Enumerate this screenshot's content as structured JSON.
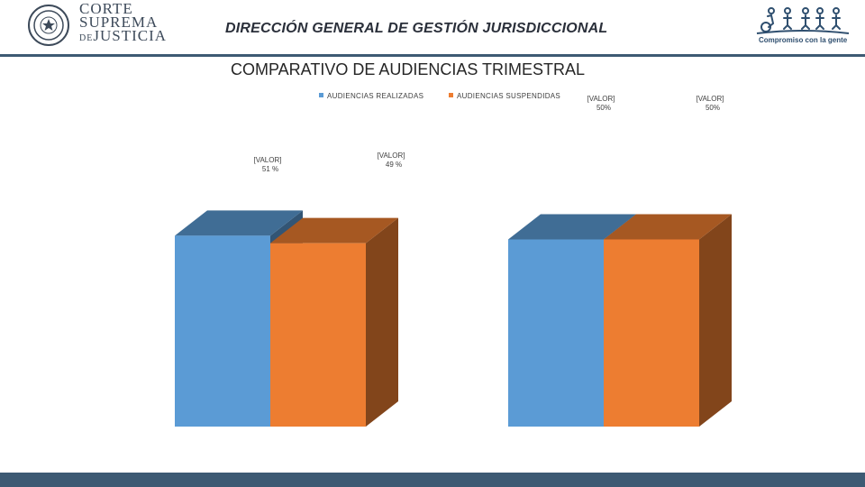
{
  "header": {
    "brand_line1": "CORTE",
    "brand_line2": "SUPREMA",
    "brand_de": "DE",
    "brand_line3": "JUSTICIA",
    "title": "DIRECCIÓN GENERAL DE GESTIÓN JURISDICCIONAL",
    "slogan": "Compromiso con la gente"
  },
  "colors": {
    "header_bar": "#3d5a73",
    "series_realizadas": "#5b9bd5",
    "series_suspendidas": "#ed7d31"
  },
  "icons": {
    "left_logo": "seal-icon",
    "right_logo": "people-icon"
  },
  "chart_data": {
    "type": "bar",
    "title": "COMPARATIVO DE AUDIENCIAS TRIMESTRAL",
    "legend_position": "top",
    "series": [
      {
        "name": "AUDIENCIAS REALIZADAS",
        "color": "#5b9bd5",
        "values": [
          51,
          50
        ]
      },
      {
        "name": "AUDIENCIAS SUSPENDIDAS",
        "color": "#ed7d31",
        "values": [
          49,
          50
        ]
      }
    ],
    "data_labels": [
      [
        [
          "[VALOR]",
          "51 %"
        ],
        [
          "[VALOR]",
          "50%"
        ]
      ],
      [
        [
          "[VALOR]",
          "49 %"
        ],
        [
          "[VALOR]",
          "50%"
        ]
      ]
    ],
    "three_d": true,
    "grid": false
  }
}
